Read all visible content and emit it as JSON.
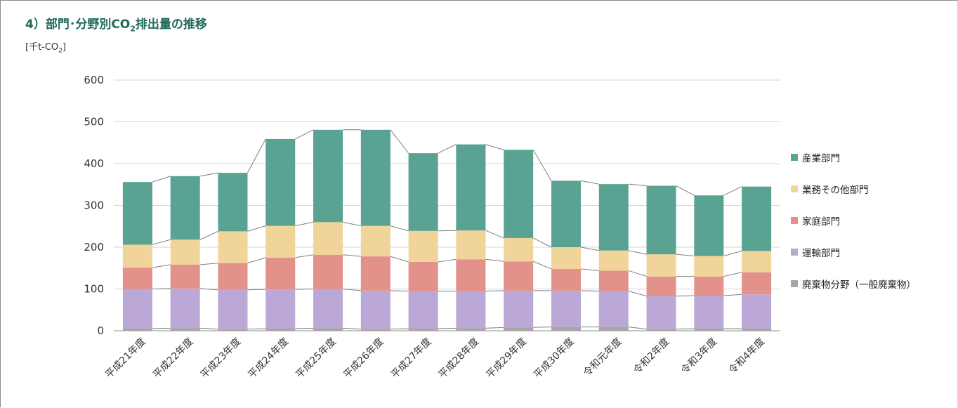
{
  "title": {
    "prefix": "4）部門･分野別CO",
    "sub": "2",
    "suffix": "排出量の推移"
  },
  "unit_label": {
    "prefix": "[千t-CO",
    "sub": "2",
    "suffix": "]"
  },
  "chart_data": {
    "type": "bar",
    "stacked": true,
    "categories": [
      "平成21年度",
      "平成22年度",
      "平成23年度",
      "平成24年度",
      "平成25年度",
      "平成26年度",
      "平成27年度",
      "平成28年度",
      "平成29年度",
      "平成30年度",
      "令和元年度",
      "令和2年度",
      "令和3年度",
      "令和4年度"
    ],
    "series": [
      {
        "name": "廃棄物分野（一般廃棄物）",
        "color": "#a6a6a6",
        "values": [
          5,
          6,
          4,
          5,
          6,
          4,
          5,
          6,
          8,
          9,
          9,
          4,
          5,
          5
        ]
      },
      {
        "name": "運輸部門",
        "color": "#bca8d6",
        "values": [
          95,
          95,
          94,
          94,
          94,
          92,
          90,
          89,
          88,
          87,
          86,
          79,
          79,
          82
        ]
      },
      {
        "name": "家庭部門",
        "color": "#e2928a",
        "values": [
          51,
          57,
          64,
          76,
          82,
          82,
          70,
          76,
          70,
          52,
          49,
          47,
          46,
          53
        ]
      },
      {
        "name": "業務その他部門",
        "color": "#f1d49a",
        "values": [
          55,
          60,
          76,
          76,
          78,
          73,
          74,
          69,
          56,
          52,
          48,
          53,
          49,
          51
        ]
      },
      {
        "name": "産業部門",
        "color": "#5aa292",
        "values": [
          150,
          152,
          140,
          208,
          221,
          230,
          186,
          206,
          211,
          159,
          159,
          164,
          145,
          154
        ]
      }
    ],
    "yticks": [
      0,
      100,
      200,
      300,
      400,
      500,
      600
    ],
    "ylim": [
      0,
      600
    ],
    "grid": true,
    "legend_position": "right",
    "legend_order": [
      "産業部門",
      "業務その他部門",
      "家庭部門",
      "運輸部門",
      "廃棄物分野（一般廃棄物）"
    ]
  }
}
